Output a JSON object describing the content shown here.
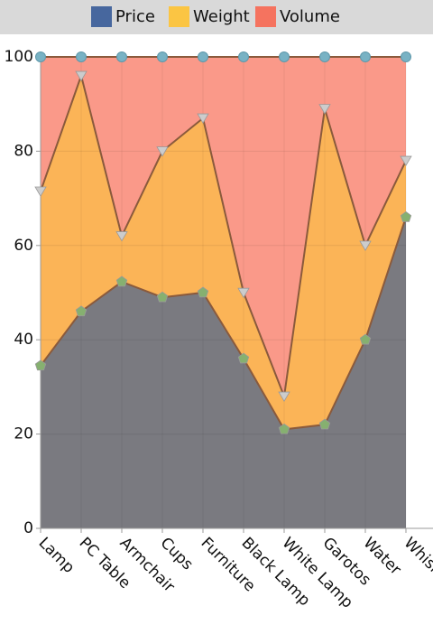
{
  "chart_data": {
    "type": "stacked_area_percent",
    "categories": [
      "Lamp",
      "PC Table",
      "Armchair",
      "Cups",
      "Furniture",
      "Black Lamp",
      "White Lamp",
      "Garotos",
      "Water",
      "Whisky"
    ],
    "series": [
      {
        "name": "Price",
        "color": "#47679e",
        "fill": "#7a7a80",
        "marker": "pentagon",
        "marker_color": "#86b070",
        "values": [
          34.5,
          46,
          52.3,
          49,
          50,
          36,
          21,
          22,
          40,
          66
        ]
      },
      {
        "name": "Weight",
        "color": "#fbc543",
        "fill": "#fbb457",
        "marker": "triangle",
        "marker_color": "#cccccc",
        "values": [
          37,
          50,
          9.7,
          31,
          37,
          14,
          7,
          67,
          20,
          12
        ]
      },
      {
        "name": "Volume",
        "color": "#f5735f",
        "fill": "#fa9989",
        "marker": "circle",
        "marker_color": "#78b2c4",
        "values": [
          28.5,
          4,
          38,
          20,
          13,
          50,
          72,
          11,
          40,
          22
        ]
      }
    ],
    "ylim": [
      0,
      100
    ],
    "yticks": [
      0,
      20,
      40,
      60,
      80,
      100
    ],
    "grid": true,
    "legend": "top"
  }
}
